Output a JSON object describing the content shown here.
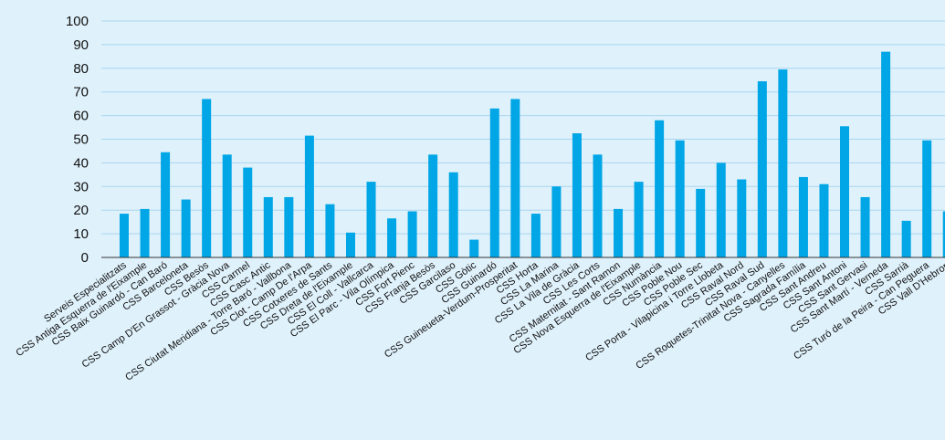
{
  "chart_data": {
    "type": "bar",
    "title": "",
    "xlabel": "",
    "ylabel": "",
    "ylim": [
      0,
      100
    ],
    "yticks": [
      0,
      10,
      20,
      30,
      40,
      50,
      60,
      70,
      80,
      90,
      100
    ],
    "grid": true,
    "legend": "none",
    "colors": {
      "background": "#dff1fb",
      "bar": "#00a6e6",
      "grid": "#a9d5ee",
      "axis": "#333333"
    },
    "categories": [
      "Serveis Especialitzats",
      "CSS Antiga Esquerra de l'Eixample",
      "CSS Baix Guinardó - Can Baró",
      "CSS Barceloneta",
      "CSS Besòs",
      "CSS Camp D'En Grassot - Gràcia Nova",
      "CSS Carmel",
      "CSS Casc Antic",
      "CSS Ciutat Meridiana - Torre Baró - Vallbona",
      "CSS Clot - Camp De l'Arpa",
      "CSS Cotxeres de Sants",
      "CSS Dreta de l'Eixample",
      "CSS El Coll - Vallcarca",
      "CSS El Parc - Vila Olímpica",
      "CSS Fort Pienc",
      "CSS Franja Besòs",
      "CSS Garcilaso",
      "CSS Gòtic",
      "CSS Guinardó",
      "CSS Guineueta-Verdum-Prosperitat",
      "CSS Horta",
      "CSS La Marina",
      "CSS La Vila de Gràcia",
      "CSS Les Corts",
      "CSS Maternitat - Sant Ramon",
      "CSS Nova Esquerra de l'Eixample",
      "CSS Numància",
      "CSS Poble Nou",
      "CSS Poble Sec",
      "CSS Porta - Vilapicina i Torre Llobeta",
      "CSS Raval Nord",
      "CSS Raval Sud",
      "CSS Roquetes-Trinitat Nova - Canyelles",
      "CSS Sagrada Família",
      "CSS Sant Andreu",
      "CSS Sant Antoni",
      "CSS Sant Gervasi",
      "CSS Sant Martí - Verneda",
      "CSS Sarrià",
      "CSS Turó de la Peira - Can Peguera",
      "CSS Vall D'Hebron"
    ],
    "values": [
      18.5,
      20.5,
      44.5,
      24.5,
      67,
      43.5,
      38,
      25.5,
      25.5,
      51.5,
      22.5,
      10.5,
      32,
      16.5,
      19.5,
      43.5,
      36,
      7.5,
      63,
      67,
      18.5,
      30,
      52.5,
      43.5,
      20.5,
      32,
      58,
      49.5,
      29,
      40,
      33,
      74.5,
      79.5,
      34,
      31,
      55.5,
      25.5,
      87,
      15.5,
      49.5,
      19.5
    ]
  }
}
